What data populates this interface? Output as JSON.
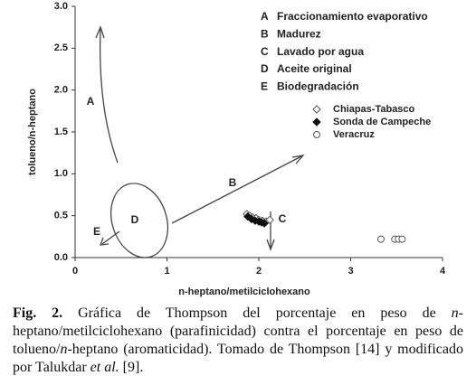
{
  "chart_data": {
    "type": "scatter",
    "xlabel": "n-heptano/metilciclohexano",
    "ylabel": "tolueno/n-heptano",
    "xlim": [
      0,
      4
    ],
    "ylim": [
      0,
      3
    ],
    "xticks": [
      0,
      1,
      2,
      3,
      4
    ],
    "yticks": [
      {
        "value": 0,
        "label": "0.0"
      },
      {
        "value": 0.5,
        "label": "0.5"
      },
      {
        "value": 1,
        "label": "1.0"
      },
      {
        "value": 1.5,
        "label": "1.5"
      },
      {
        "value": 2,
        "label": "2.0"
      },
      {
        "value": 2.5,
        "label": "2.5"
      },
      {
        "value": 3,
        "label": "3.0"
      }
    ],
    "series": [
      {
        "name": "Chiapas-Tabasco",
        "color": "#555555",
        "marker": "diamond-open",
        "x": [
          1.87,
          1.9,
          1.93,
          1.97,
          2.0,
          2.04,
          2.08,
          2.12
        ],
        "values": [
          0.52,
          0.5,
          0.48,
          0.47,
          0.45,
          0.44,
          0.43,
          0.45
        ]
      },
      {
        "name": "Sonda de Campeche",
        "color": "#111111",
        "marker": "diamond",
        "x": [
          1.88,
          1.92,
          1.96,
          2.0,
          2.03,
          2.06
        ],
        "values": [
          0.49,
          0.46,
          0.44,
          0.43,
          0.42,
          0.41
        ]
      },
      {
        "name": "Veracruz",
        "color": "#555555",
        "marker": "circle-open",
        "x": [
          3.33,
          3.48,
          3.52,
          3.56
        ],
        "values": [
          0.22,
          0.22,
          0.22,
          0.22
        ]
      }
    ],
    "process_key": [
      {
        "letter": "A",
        "label": "Fraccionamiento evaporativo"
      },
      {
        "letter": "B",
        "label": "Madurez"
      },
      {
        "letter": "C",
        "label": "Lavado por agua"
      },
      {
        "letter": "D",
        "label": "Aceite original"
      },
      {
        "letter": "E",
        "label": "Biodegradación"
      }
    ]
  },
  "caption": {
    "label": "Fig. 2.",
    "parts": [
      {
        "text": " Gráfica de Thompson del porcentaje en peso de "
      },
      {
        "text": "n",
        "italic": true
      },
      {
        "text": "-heptano/metilciclohexano (parafinicidad) contra el porcentaje en peso de tolueno/"
      },
      {
        "text": "n",
        "italic": true
      },
      {
        "text": "-heptano (aromaticidad). Tomado de Thompson [14] y modificado por Talukdar "
      },
      {
        "text": "et al.",
        "italic": true
      },
      {
        "text": " [9]."
      }
    ]
  }
}
